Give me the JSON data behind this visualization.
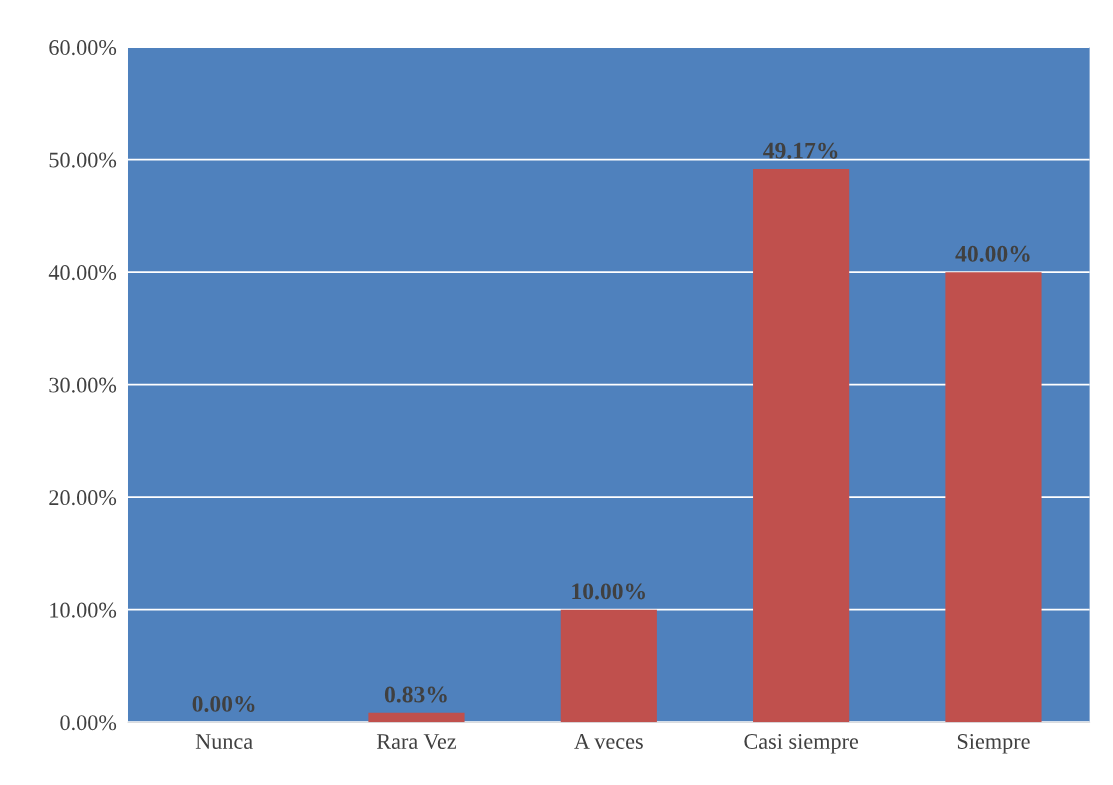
{
  "chart_data": {
    "type": "bar",
    "categories": [
      "Nunca",
      "Rara Vez",
      "A veces",
      "Casi siempre",
      "Siempre"
    ],
    "values": [
      0,
      0.83,
      10,
      49.17,
      40
    ],
    "value_labels": [
      "0.00%",
      "0.83%",
      "10.00%",
      "49.17%",
      "40.00%"
    ],
    "color": "#c0504d",
    "ylim": [
      0,
      60
    ],
    "yticks": [
      {
        "value": 0,
        "label": "0.00%"
      },
      {
        "value": 10,
        "label": "10.00%"
      },
      {
        "value": 20,
        "label": "20.00%"
      },
      {
        "value": 30,
        "label": "30.00%"
      },
      {
        "value": 40,
        "label": "40.00%"
      },
      {
        "value": 50,
        "label": "50.00%"
      },
      {
        "value": 60,
        "label": "60.00%"
      }
    ],
    "grid": "y"
  }
}
